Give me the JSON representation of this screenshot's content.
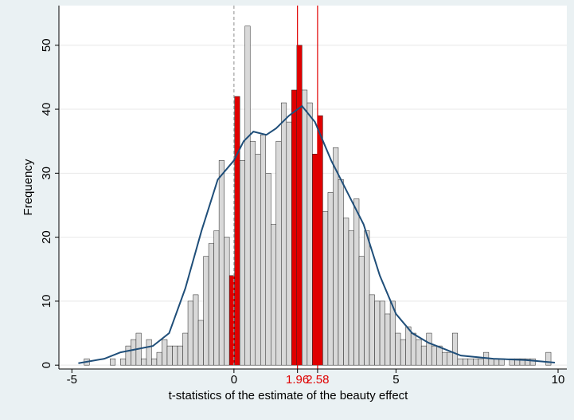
{
  "chart_data": {
    "type": "histogram",
    "x_label": "t-statistics of the estimate of the beauty effect",
    "y_label": "Frequency",
    "bins": [
      -4.78,
      -4.62,
      -4.46,
      -4.3,
      -4.14,
      -3.98,
      -3.82,
      -3.66,
      -3.5,
      -3.34,
      -3.18,
      -3.02,
      -2.86,
      -2.7,
      -2.54,
      -2.38,
      -2.22,
      -2.06,
      -1.9,
      -1.74,
      -1.58,
      -1.42,
      -1.26,
      -1.1,
      -0.94,
      -0.78,
      -0.62,
      -0.46,
      -0.3,
      -0.14,
      0.02,
      0.18,
      0.34,
      0.5,
      0.66,
      0.82,
      0.98,
      1.14,
      1.3,
      1.46,
      1.62,
      1.78,
      1.94,
      2.1,
      2.26,
      2.42,
      2.58,
      2.74,
      2.9,
      3.06,
      3.22,
      3.38,
      3.54,
      3.7,
      3.86,
      4.02,
      4.18,
      4.34,
      4.5,
      4.66,
      4.82,
      4.98,
      5.14,
      5.3,
      5.46,
      5.62,
      5.78,
      5.94,
      6.1,
      6.26,
      6.42,
      6.58,
      6.74,
      6.9,
      7.06,
      7.22,
      7.38,
      7.54,
      7.7,
      7.86,
      8.02,
      8.18,
      8.34,
      8.5,
      8.66,
      8.82,
      8.98,
      9.14,
      9.3,
      9.46,
      9.62,
      9.78,
      9.94
    ],
    "counts": [
      0,
      1,
      0,
      0,
      0,
      0,
      1,
      0,
      1,
      3,
      4,
      5,
      1,
      4,
      1,
      2,
      4,
      3,
      3,
      3,
      5,
      10,
      11,
      7,
      17,
      19,
      21,
      32,
      20,
      14,
      42,
      32,
      53,
      35,
      33,
      36,
      30,
      22,
      35,
      41,
      38,
      43,
      50,
      43,
      41,
      33,
      39,
      24,
      27,
      34,
      29,
      23,
      21,
      26,
      17,
      21,
      11,
      10,
      10,
      8,
      10,
      5,
      4,
      6,
      5,
      4,
      3,
      5,
      3,
      3,
      2,
      2,
      5,
      1,
      1,
      1,
      1,
      1,
      2,
      1,
      1,
      1,
      0,
      1,
      1,
      1,
      1,
      1,
      0,
      0,
      2,
      0
    ],
    "color": "#d9d9d9",
    "highlight_color": "#e00000",
    "highlight_bins": [
      29,
      30,
      41,
      42,
      45,
      46
    ],
    "density": {
      "color": "#1f4e79",
      "x": [
        -4.8,
        -4,
        -3.5,
        -3,
        -2.5,
        -2,
        -1.5,
        -1,
        -0.5,
        0,
        0.3,
        0.6,
        1,
        1.3,
        1.7,
        2.1,
        2.5,
        3,
        3.5,
        4,
        4.5,
        5,
        5.5,
        6,
        6.5,
        7,
        8,
        9,
        9.9
      ],
      "y": [
        0.3,
        1,
        2,
        2.5,
        3,
        5,
        12,
        21,
        29,
        32,
        35,
        36.5,
        36,
        37,
        39,
        40.5,
        38,
        32,
        27,
        22,
        14,
        8,
        5,
        3.5,
        2.5,
        1.5,
        1,
        0.8,
        0.4
      ]
    },
    "reference_lines": [
      {
        "value": 0,
        "color": "#a0a0a0",
        "dashed": true
      },
      {
        "value": 1.96,
        "color": "#e00000",
        "dashed": false
      },
      {
        "value": 2.58,
        "color": "#e00000",
        "dashed": false
      }
    ],
    "xlim": [
      -5.4,
      10.27
    ],
    "ylim": [
      -0.6,
      56.2
    ],
    "xticks": [
      -5,
      0,
      1.96,
      2.58,
      5,
      10
    ],
    "xtick_colors": [
      "#000000",
      "#000000",
      "#e00000",
      "#e00000",
      "#000000",
      "#000000"
    ],
    "yticks": [
      0,
      10,
      20,
      30,
      40,
      50
    ],
    "grid": true
  }
}
